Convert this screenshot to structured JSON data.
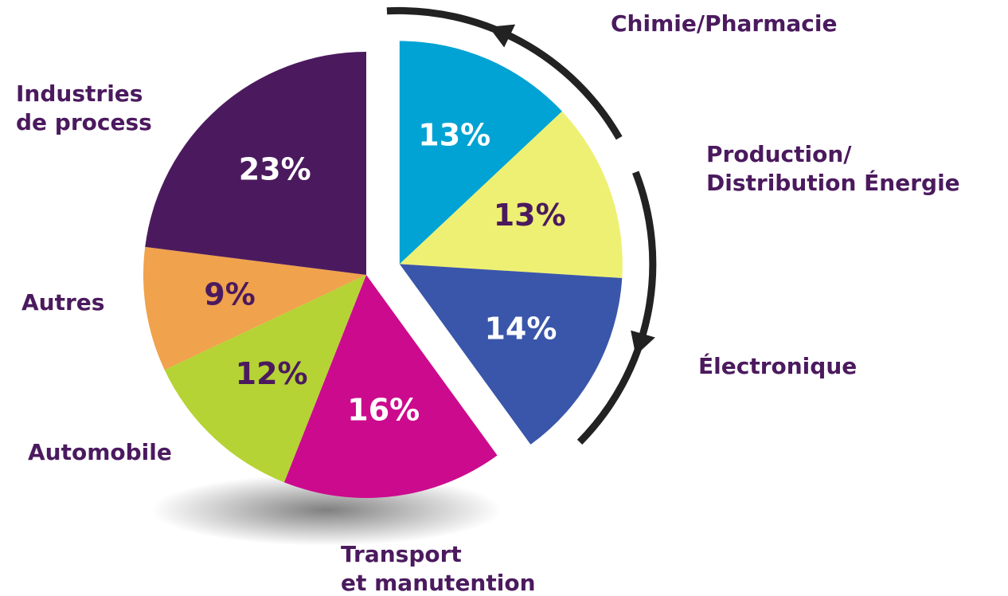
{
  "chart_data": {
    "type": "pie",
    "categories": [
      "Chimie/Pharmacie",
      "Production/\nDistribution Énergie",
      "Électronique",
      "Transport\net manutention",
      "Automobile",
      "Autres",
      "Industries\nde process"
    ],
    "values": [
      13,
      13,
      14,
      16,
      12,
      9,
      23
    ],
    "value_labels": [
      "13%",
      "13%",
      "14%",
      "16%",
      "12%",
      "9%",
      "23%"
    ],
    "colors": [
      "#00a3d3",
      "#eef073",
      "#3a56aa",
      "#cc0a8e",
      "#b5d334",
      "#f0a24c",
      "#4b1a5e"
    ],
    "exploded": [
      0,
      1,
      2
    ]
  }
}
